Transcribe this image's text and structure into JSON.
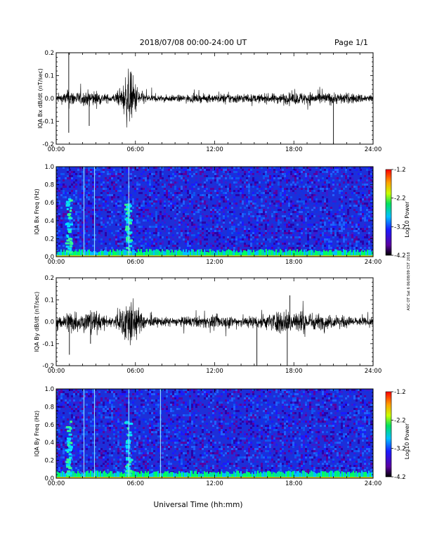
{
  "header": {
    "title": "2018/07/08  00:00-24:00 UT",
    "page": "Page 1/1"
  },
  "footer": {
    "xlabel": "Universal Time (hh:mm)",
    "side_note": "ASC OT Sat 6 06/08/09 CST 2018"
  },
  "colors": {
    "waveform": "#000000",
    "spectrogram_background": "#1d2fd8",
    "colorbar": [
      "#000000",
      "#5a00a0",
      "#1a1aff",
      "#00c0ff",
      "#00e060",
      "#c8ff00",
      "#ffa000",
      "#ff0000"
    ]
  },
  "chart_data": [
    {
      "type": "line",
      "ylabel": "IQA Bx dB/dt (nT/sec)",
      "x_ticks": [
        "00:00",
        "06:00",
        "12:00",
        "18:00",
        "24:00"
      ],
      "y_ticks": [
        "0.2",
        "0.1",
        "0.0",
        "-0.1",
        "-0.2"
      ],
      "xlim": [
        0,
        24
      ],
      "ylim": [
        -0.2,
        0.2
      ],
      "series": [
        {
          "x": [
            0,
            0.5,
            1.0,
            1.5,
            2.0,
            2.5,
            3.0,
            3.5,
            4.0,
            4.5,
            5.0,
            5.3,
            5.5,
            5.7,
            6.0,
            6.5,
            7.0,
            8.0,
            9.0,
            10.0,
            11.0,
            12.0,
            13.0,
            14.0,
            15.0,
            16.0,
            17.0,
            18.0,
            19.0,
            20.0,
            21.0,
            22.0,
            23.0,
            24.0
          ],
          "envelope": [
            0.03,
            0.04,
            0.07,
            0.05,
            0.05,
            0.06,
            0.06,
            0.04,
            0.03,
            0.04,
            0.08,
            0.2,
            0.2,
            0.2,
            0.12,
            0.05,
            0.03,
            0.025,
            0.025,
            0.03,
            0.03,
            0.03,
            0.04,
            0.035,
            0.03,
            0.035,
            0.04,
            0.045,
            0.05,
            0.045,
            0.045,
            0.04,
            0.035,
            0.03
          ]
        }
      ],
      "spikes": [
        {
          "x": 0.95,
          "y": 0.2
        },
        {
          "x": 0.95,
          "y": -0.15
        },
        {
          "x": 2.5,
          "y": -0.12
        },
        {
          "x": 21.0,
          "y": -0.2
        }
      ]
    },
    {
      "type": "heatmap",
      "ylabel": "IQA Bx Freq (Hz)",
      "x_ticks": [
        "00:00",
        "06:00",
        "12:00",
        "18:00",
        "24:00"
      ],
      "y_ticks": [
        "1.0",
        "0.8",
        "0.6",
        "0.4",
        "0.2",
        "0.0"
      ],
      "xlim": [
        0,
        24
      ],
      "ylim": [
        0,
        1.0
      ],
      "colorbar_label": "Log10 Power",
      "colorbar_ticks": [
        "-1.2",
        "-2.2",
        "-3.2",
        "-4.2"
      ],
      "zlim": [
        -4.2,
        -1.2
      ],
      "vertical_lines_hours": [
        2.1,
        2.9,
        5.5
      ],
      "bursts_hours": [
        1.0,
        5.5
      ]
    },
    {
      "type": "line",
      "ylabel": "IQA By dB/dt (nT/sec)",
      "x_ticks": [
        "00:00",
        "06:00",
        "12:00",
        "18:00",
        "24:00"
      ],
      "y_ticks": [
        "0.2",
        "0.1",
        "0.0",
        "-0.1",
        "-0.2"
      ],
      "xlim": [
        0,
        24
      ],
      "ylim": [
        -0.2,
        0.2
      ],
      "series": [
        {
          "x": [
            0,
            0.5,
            1.0,
            1.5,
            2.0,
            2.5,
            3.0,
            3.5,
            4.0,
            4.5,
            5.0,
            5.3,
            5.5,
            5.7,
            6.0,
            6.5,
            7.0,
            8.0,
            9.0,
            10.0,
            11.0,
            12.0,
            13.0,
            14.0,
            15.0,
            16.0,
            17.0,
            18.0,
            19.0,
            20.0,
            21.0,
            22.0,
            23.0,
            24.0
          ],
          "envelope": [
            0.04,
            0.05,
            0.1,
            0.08,
            0.07,
            0.1,
            0.09,
            0.05,
            0.04,
            0.06,
            0.1,
            0.2,
            0.2,
            0.2,
            0.15,
            0.06,
            0.04,
            0.035,
            0.035,
            0.04,
            0.045,
            0.05,
            0.05,
            0.045,
            0.05,
            0.06,
            0.09,
            0.1,
            0.08,
            0.06,
            0.05,
            0.045,
            0.035,
            0.03
          ]
        }
      ],
      "spikes": [
        {
          "x": 1.0,
          "y": -0.15
        },
        {
          "x": 2.6,
          "y": -0.1
        },
        {
          "x": 15.2,
          "y": -0.2
        },
        {
          "x": 17.5,
          "y": -0.2
        },
        {
          "x": 17.7,
          "y": 0.12
        }
      ]
    },
    {
      "type": "heatmap",
      "ylabel": "IQA By Freq (Hz)",
      "x_ticks": [
        "00:00",
        "06:00",
        "12:00",
        "18:00",
        "24:00"
      ],
      "y_ticks": [
        "1.0",
        "0.8",
        "0.6",
        "0.4",
        "0.2",
        "0.0"
      ],
      "xlim": [
        0,
        24
      ],
      "ylim": [
        0,
        1.0
      ],
      "colorbar_label": "Log10 Power",
      "colorbar_ticks": [
        "-1.2",
        "-2.2",
        "-3.2",
        "-4.2"
      ],
      "zlim": [
        -4.2,
        -1.2
      ],
      "vertical_lines_hours": [
        2.1,
        2.9,
        5.5,
        7.9
      ],
      "bursts_hours": [
        1.0,
        5.5
      ]
    }
  ]
}
